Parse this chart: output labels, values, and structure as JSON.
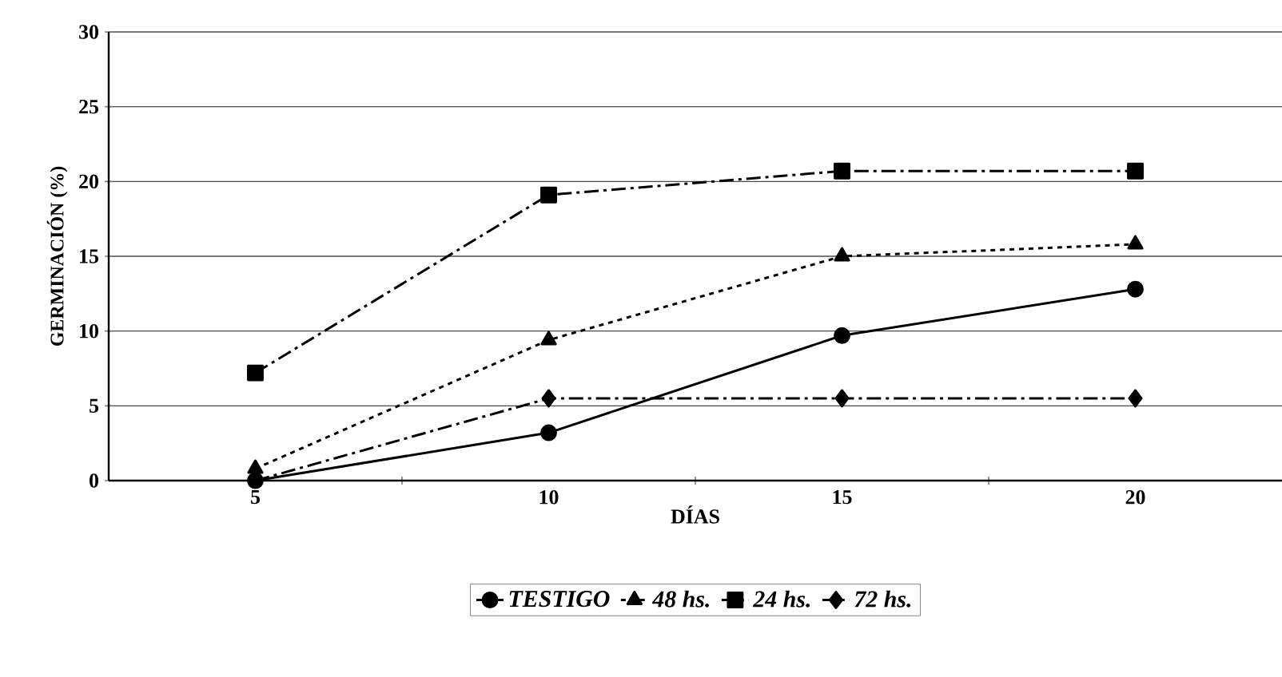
{
  "chart_data": {
    "type": "line",
    "xlabel": "DÍAS",
    "ylabel": "GERMINACIÓN (%)",
    "categories": [
      "5",
      "10",
      "15",
      "20"
    ],
    "series": [
      {
        "name": "TESTIGO",
        "color": "#000000",
        "marker": "circle",
        "line_style": "solid",
        "values": [
          0,
          3.2,
          9.7,
          12.8
        ]
      },
      {
        "name": "48 hs.",
        "color": "#000000",
        "marker": "triangle",
        "line_style": "dotted",
        "values": [
          0.8,
          9.4,
          15.0,
          15.8
        ]
      },
      {
        "name": "24 hs.",
        "color": "#000000",
        "marker": "square",
        "line_style": "dashed",
        "values": [
          7.2,
          19.1,
          20.7,
          20.7
        ]
      },
      {
        "name": "72 hs.",
        "color": "#000000",
        "marker": "diamond",
        "line_style": "dashed",
        "values": [
          0,
          5.5,
          5.5,
          5.5
        ]
      }
    ],
    "ylim": [
      0,
      30
    ],
    "yticks": [
      0,
      5,
      10,
      15,
      20,
      25,
      30
    ],
    "grid": "y",
    "legend": "bottom"
  }
}
